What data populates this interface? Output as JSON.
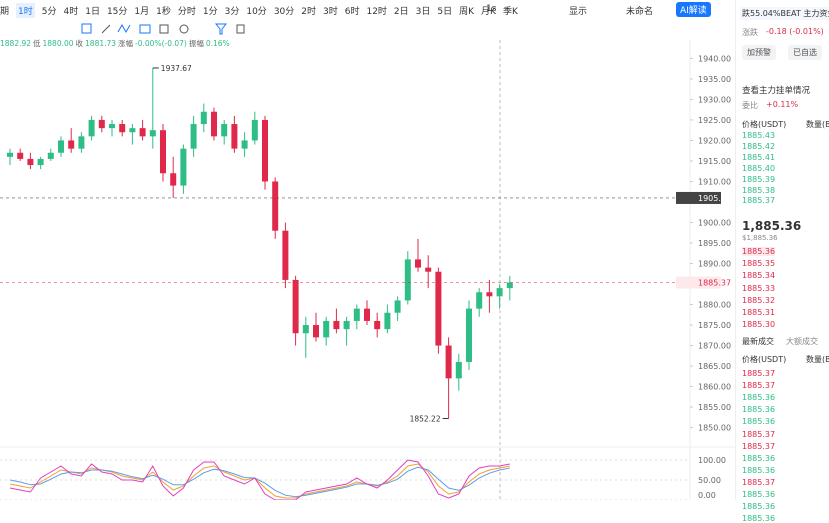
{
  "toolbar": {
    "intervals": [
      "期",
      "1时",
      "5分",
      "4时",
      "1日",
      "15分",
      "1月",
      "1秒",
      "分时",
      "1分",
      "3分",
      "10分",
      "30分",
      "2时",
      "3时",
      "6时",
      "12时",
      "2日",
      "3日",
      "5日",
      "周K",
      "月K",
      "季K"
    ],
    "active_index": 1,
    "right": [
      "1s",
      "显示",
      "未命名",
      "AI解读"
    ]
  },
  "info": [
    "1882.92",
    "低",
    "1880.00",
    "收",
    "1881.73",
    "涨幅",
    "-0.00%(-0.07)",
    "振幅",
    "0.16%"
  ],
  "chart_data": {
    "type": "candlestick",
    "up_color": "#2ebd85",
    "down_color": "#e0294a",
    "open": [
      1916,
      1917,
      1915.5,
      1914,
      1915.5,
      1917,
      1920,
      1918,
      1921,
      1925,
      1923,
      1924,
      1922,
      1923,
      1921,
      1922.5,
      1912,
      1909,
      1918,
      1924,
      1927,
      1921,
      1924,
      1918,
      1920,
      1925,
      1910,
      1898,
      1886,
      1873,
      1875,
      1872,
      1876,
      1874,
      1876,
      1879,
      1876,
      1874,
      1878,
      1881,
      1891,
      1889,
      1888,
      1870,
      1862,
      1866,
      1879,
      1883,
      1882,
      1884
    ],
    "high": [
      1918,
      1918,
      1917,
      1916,
      1918,
      1921,
      1923,
      1922,
      1926,
      1926,
      1925,
      1925,
      1924,
      1925,
      1937.67,
      1924,
      1916,
      1919,
      1926,
      1929,
      1928,
      1925,
      1926,
      1922,
      1927,
      1926,
      1911,
      1900,
      1887,
      1877,
      1878,
      1877,
      1879,
      1877,
      1880,
      1881,
      1878,
      1880,
      1882,
      1893,
      1896,
      1892,
      1889,
      1872,
      1868,
      1881,
      1884,
      1886,
      1885,
      1887
    ],
    "low": [
      1914,
      1915,
      1913,
      1913,
      1915,
      1916,
      1917,
      1917,
      1920,
      1922,
      1921,
      1921,
      1919,
      1920,
      1918,
      1910,
      1906,
      1907,
      1916,
      1922,
      1920,
      1919,
      1917,
      1916,
      1919,
      1908,
      1896,
      1884,
      1870,
      1867,
      1871,
      1870,
      1873,
      1870,
      1874,
      1875,
      1872,
      1873,
      1876,
      1880,
      1888,
      1884,
      1868,
      1852.22,
      1859,
      1864,
      1877,
      1878,
      1879,
      1881
    ],
    "close": [
      1917,
      1915.5,
      1914,
      1915.5,
      1917,
      1920,
      1918,
      1921,
      1925,
      1923,
      1924,
      1922,
      1923,
      1921,
      1922.5,
      1912,
      1909,
      1918,
      1924,
      1927,
      1921,
      1924,
      1918,
      1920,
      1925,
      1910,
      1898,
      1886,
      1873,
      1875,
      1872,
      1876,
      1874,
      1876,
      1879,
      1876,
      1874,
      1878,
      1881,
      1891,
      1889,
      1888,
      1870,
      1862,
      1866,
      1879,
      1883,
      1882,
      1884,
      1885.37
    ],
    "ylim": [
      1846,
      1944
    ],
    "yticks": [
      {
        "value": 1940,
        "label": "1940.00"
      },
      {
        "value": 1935,
        "label": "1935.00"
      },
      {
        "value": 1930,
        "label": "1930.00"
      },
      {
        "value": 1925,
        "label": "1925.00"
      },
      {
        "value": 1920,
        "label": "1920.00"
      },
      {
        "value": 1915,
        "label": "1915.00"
      },
      {
        "value": 1910,
        "label": "1910.00"
      },
      {
        "value": 1900,
        "label": "1900.00"
      },
      {
        "value": 1895,
        "label": "1895.00"
      },
      {
        "value": 1890,
        "label": "1890.00"
      },
      {
        "value": 1880,
        "label": "1880.00"
      },
      {
        "value": 1875,
        "label": "1875.00"
      },
      {
        "value": 1870,
        "label": "1870.00"
      },
      {
        "value": 1865,
        "label": "1865.00"
      },
      {
        "value": 1860,
        "label": "1860.00"
      },
      {
        "value": 1855,
        "label": "1855.00"
      },
      {
        "value": 1850,
        "label": "1850.00"
      }
    ],
    "max_price": 1937.67,
    "min_price": 1852.22,
    "last_price": 1885.37,
    "crosshair_price": 1905.98,
    "indicator": {
      "ylim": [
        0,
        120
      ],
      "yticks": [
        {
          "value": 100,
          "label": "100.00"
        },
        {
          "value": 50,
          "label": "50.00"
        },
        {
          "value": 0,
          "label": "0.00"
        }
      ],
      "series": [
        {
          "color": "#f0a030",
          "values": [
            40,
            35,
            30,
            45,
            60,
            75,
            70,
            65,
            80,
            75,
            70,
            60,
            55,
            50,
            70,
            45,
            25,
            35,
            60,
            80,
            85,
            70,
            60,
            50,
            55,
            30,
            10,
            5,
            5,
            15,
            20,
            25,
            30,
            35,
            45,
            40,
            35,
            45,
            60,
            85,
            90,
            70,
            35,
            15,
            20,
            45,
            65,
            75,
            80,
            85
          ]
        },
        {
          "color": "#5aa0e6",
          "values": [
            50,
            45,
            38,
            40,
            52,
            65,
            70,
            68,
            75,
            75,
            72,
            65,
            58,
            53,
            62,
            52,
            38,
            38,
            52,
            68,
            77,
            73,
            65,
            56,
            55,
            42,
            24,
            12,
            8,
            12,
            17,
            22,
            27,
            32,
            40,
            40,
            37,
            42,
            52,
            72,
            82,
            75,
            52,
            30,
            24,
            37,
            55,
            67,
            75,
            80
          ]
        },
        {
          "color": "#e040c0",
          "values": [
            30,
            25,
            20,
            55,
            70,
            85,
            65,
            60,
            90,
            70,
            65,
            50,
            50,
            45,
            85,
            35,
            10,
            30,
            75,
            95,
            95,
            60,
            50,
            40,
            55,
            15,
            0,
            0,
            0,
            20,
            25,
            30,
            35,
            40,
            55,
            40,
            30,
            50,
            75,
            100,
            95,
            60,
            15,
            5,
            15,
            60,
            80,
            85,
            85,
            90
          ]
        }
      ]
    }
  },
  "panel": {
    "banner": "跌55.04%BEAT 主力资金卖出",
    "change_label": "涨跌",
    "change": "-0.18 (-0.01%)",
    "buttons": [
      "加预警",
      "已自选"
    ],
    "depth_link": "查看主力挂单情况",
    "ratio_label": "委比",
    "ratio": "+0.11%",
    "book_headers": [
      "价格(USDT)",
      "数量(B"
    ],
    "book_top": [
      "1885.43",
      "1885.42",
      "1885.41",
      "1885.40",
      "1885.39",
      "1885.38",
      "1885.37"
    ],
    "last": "1,885.36",
    "last_usd": "$1,885.36",
    "book_bottom": [
      "1885.36",
      "1885.35",
      "1885.34",
      "1885.33",
      "1885.32",
      "1885.31",
      "1885.30"
    ],
    "trade_tabs": [
      "最新成交",
      "大额成交"
    ],
    "trade_headers": [
      "价格(USDT)",
      "数量(B"
    ],
    "trades": [
      {
        "price": "1885.37",
        "color": "#e0294a"
      },
      {
        "price": "1885.37",
        "color": "#e0294a"
      },
      {
        "price": "1885.36",
        "color": "#2ebd85"
      },
      {
        "price": "1885.36",
        "color": "#2ebd85"
      },
      {
        "price": "1885.36",
        "color": "#2ebd85"
      },
      {
        "price": "1885.37",
        "color": "#e0294a"
      },
      {
        "price": "1885.37",
        "color": "#e0294a"
      },
      {
        "price": "1885.36",
        "color": "#2ebd85"
      },
      {
        "price": "1885.36",
        "color": "#2ebd85"
      },
      {
        "price": "1885.37",
        "color": "#e0294a"
      },
      {
        "price": "1885.36",
        "color": "#2ebd85"
      },
      {
        "price": "1885.36",
        "color": "#2ebd85"
      },
      {
        "price": "1885.36",
        "color": "#2ebd85"
      }
    ]
  }
}
